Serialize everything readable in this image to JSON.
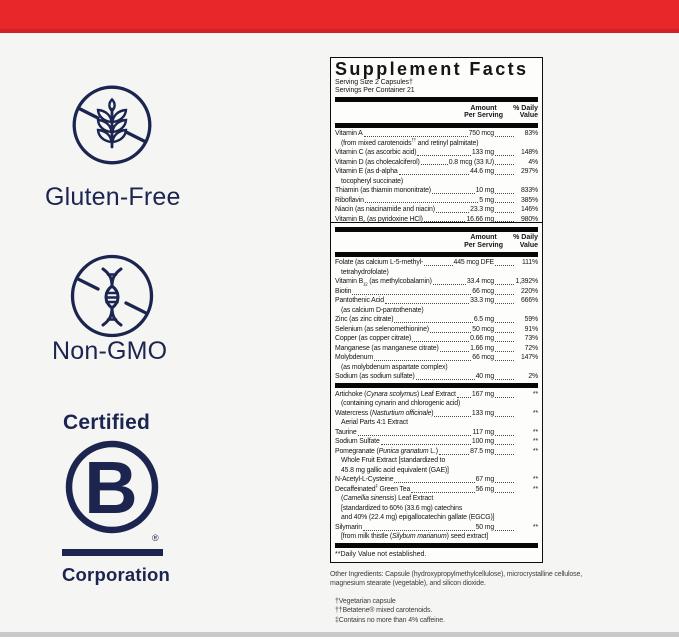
{
  "colors": {
    "red_band": "#e8272b",
    "navy": "#1b2550",
    "page_bg": "#f5f5f3",
    "gray_bottom_bar": "#c9c9c9"
  },
  "badges": {
    "gluten_free": {
      "label": "Gluten-Free",
      "icon": "wheat-crossed-icon"
    },
    "non_gmo": {
      "label": "Non-GMO",
      "icon": "dna-crossed-icon"
    },
    "b_corp": {
      "certified_label": "Certified",
      "letter": "B",
      "registered_mark": "®",
      "corporation_label": "Corporation",
      "icon": "b-corporation-logo"
    }
  },
  "panel": {
    "title": "Supplement Facts",
    "serving_size": "Serving Size 2 Capsules†",
    "servings_per_container": "Servings Per Container 21",
    "header": {
      "amount_line1": "Amount",
      "amount_line2": "Per Serving",
      "dv_line1": "% Daily",
      "dv_line2": "Value"
    },
    "box1_rows": [
      {
        "name": [
          {
            "t": "Vitamin A"
          }
        ],
        "amount": "750 mcg",
        "dv": "83%",
        "subs": [
          [
            {
              "t": "(from mixed carotenoids"
            },
            {
              "t": "††",
              "style": "sup"
            },
            {
              "t": " and retinyl palmitate)"
            }
          ]
        ]
      },
      {
        "name": [
          {
            "t": "Vitamin C (as ascorbic acid)"
          }
        ],
        "amount": "133 mg",
        "dv": "148%"
      },
      {
        "name": [
          {
            "t": "Vitamin D (as cholecalciferol)"
          }
        ],
        "amount": "0.8 mcg (33 IU)",
        "dv": "4%"
      },
      {
        "name": [
          {
            "t": "Vitamin E (as d-alpha"
          }
        ],
        "amount": "44.6 mg",
        "dv": "297%",
        "subs": [
          [
            {
              "t": "tocopheryl succinate)"
            }
          ]
        ]
      },
      {
        "name": [
          {
            "t": "Thiamin (as thiamin mononitrate)"
          }
        ],
        "amount": "10 mg",
        "dv": "833%"
      },
      {
        "name": [
          {
            "t": "Riboflavin"
          }
        ],
        "amount": "5 mg",
        "dv": "385%"
      },
      {
        "name": [
          {
            "t": "Niacin (as niacinamide and niacin)"
          }
        ],
        "amount": "23.3 mg",
        "dv": "146%"
      },
      {
        "name": [
          {
            "t": "Vitamin B"
          },
          {
            "t": "6",
            "style": "sub"
          },
          {
            "t": " (as pyridoxine HCl)"
          }
        ],
        "amount": "16.66 mg",
        "dv": "980%"
      }
    ],
    "box2_rows_a": [
      {
        "name": [
          {
            "t": "Folate (as calcium L-5-methyl-"
          }
        ],
        "amount": "445 mcg DFE",
        "dv": "111%",
        "subs": [
          [
            {
              "t": "tetrahydrofolate)"
            }
          ]
        ]
      },
      {
        "name": [
          {
            "t": "Vitamin B"
          },
          {
            "t": "12",
            "style": "sub"
          },
          {
            "t": " (as methylcobalamin)"
          }
        ],
        "amount": "33.4 mcg",
        "dv": "1,392%"
      },
      {
        "name": [
          {
            "t": "Biotin"
          }
        ],
        "amount": "66 mcg",
        "dv": "220%"
      },
      {
        "name": [
          {
            "t": "Pantothenic Acid"
          }
        ],
        "amount": "33.3 mg",
        "dv": "666%",
        "subs": [
          [
            {
              "t": "(as calcium D-pantothenate)"
            }
          ]
        ]
      },
      {
        "name": [
          {
            "t": "Zinc (as zinc citrate)"
          }
        ],
        "amount": "6.5 mg",
        "dv": "59%"
      },
      {
        "name": [
          {
            "t": "Selenium (as selenomethionine)"
          }
        ],
        "amount": "50 mcg",
        "dv": "91%"
      },
      {
        "name": [
          {
            "t": "Copper (as copper citrate)"
          }
        ],
        "amount": "0.66 mg",
        "dv": "73%"
      },
      {
        "name": [
          {
            "t": "Manganese (as manganese citrate)"
          }
        ],
        "amount": "1.66 mg",
        "dv": "72%"
      },
      {
        "name": [
          {
            "t": "Molybdenum"
          }
        ],
        "amount": "66 mcg",
        "dv": "147%",
        "subs": [
          [
            {
              "t": "(as molybdenum aspartate complex)"
            }
          ]
        ]
      },
      {
        "name": [
          {
            "t": "Sodium (as sodium sulfate)"
          }
        ],
        "amount": "40 mg",
        "dv": "2%"
      }
    ],
    "box2_rows_b": [
      {
        "name": [
          {
            "t": "Artichoke ("
          },
          {
            "t": "Cynara scolymus",
            "style": "i"
          },
          {
            "t": ") Leaf Extract"
          }
        ],
        "amount": "167 mg",
        "dv": "**",
        "subs": [
          [
            {
              "t": "(containing cynarin and chlorogenic acid)"
            }
          ]
        ]
      },
      {
        "name": [
          {
            "t": "Watercress ("
          },
          {
            "t": "Nasturtium officinale",
            "style": "i"
          },
          {
            "t": ")"
          }
        ],
        "amount": "133 mg",
        "dv": "**",
        "subs": [
          [
            {
              "t": "Aerial Parts 4:1 Extract"
            }
          ]
        ]
      },
      {
        "name": [
          {
            "t": "Taurine"
          }
        ],
        "amount": "117 mg",
        "dv": "**"
      },
      {
        "name": [
          {
            "t": "Sodium Sulfate"
          }
        ],
        "amount": "100 mg",
        "dv": "**"
      },
      {
        "name": [
          {
            "t": "Pomegranate ("
          },
          {
            "t": "Punica granatum",
            "style": "i"
          },
          {
            "t": " L.)"
          }
        ],
        "amount": "87.5 mg",
        "dv": "**",
        "subs": [
          [
            {
              "t": "Whole Fruit Extract [standardized to"
            }
          ],
          [
            {
              "t": "45.8 mg gallic acid equivalent (GAE)]"
            }
          ]
        ]
      },
      {
        "name": [
          {
            "t": "N-Acetyl-L-Cysteine"
          }
        ],
        "amount": "67 mg",
        "dv": "**"
      },
      {
        "name": [
          {
            "t": "Decaffeinated"
          },
          {
            "t": "‡",
            "style": "sup"
          },
          {
            "t": " Green Tea"
          }
        ],
        "amount": "56 mg",
        "dv": "**",
        "subs": [
          [
            {
              "t": "("
            },
            {
              "t": "Camellia sinensis",
              "style": "i"
            },
            {
              "t": ") Leaf Extract"
            }
          ],
          [
            {
              "t": "[standardized to 60% (33.6 mg) catechins"
            }
          ],
          [
            {
              "t": "and 40% (22.4 mg) epigallocatechin gallate (EGCG)]"
            }
          ]
        ]
      },
      {
        "name": [
          {
            "t": "Silymarin"
          }
        ],
        "amount": "50 mg",
        "dv": "**",
        "subs": [
          [
            {
              "t": "[from milk thistle ("
            },
            {
              "t": "Silybum marianum",
              "style": "i"
            },
            {
              "t": ") seed extract]"
            }
          ]
        ]
      }
    ],
    "daily_value_note": "**Daily Value not established."
  },
  "footer": {
    "other_ingredients": "Other Ingredients: Capsule (hydroxypropylmethylcellulose), microcrystalline cellulose, magnesium stearate (vegetable), and silicon dioxide.",
    "footnotes": [
      "†Vegetarian capsule",
      "††Betatene® mixed carotenoids.",
      "‡Contains no more than 4% caffeine."
    ]
  }
}
